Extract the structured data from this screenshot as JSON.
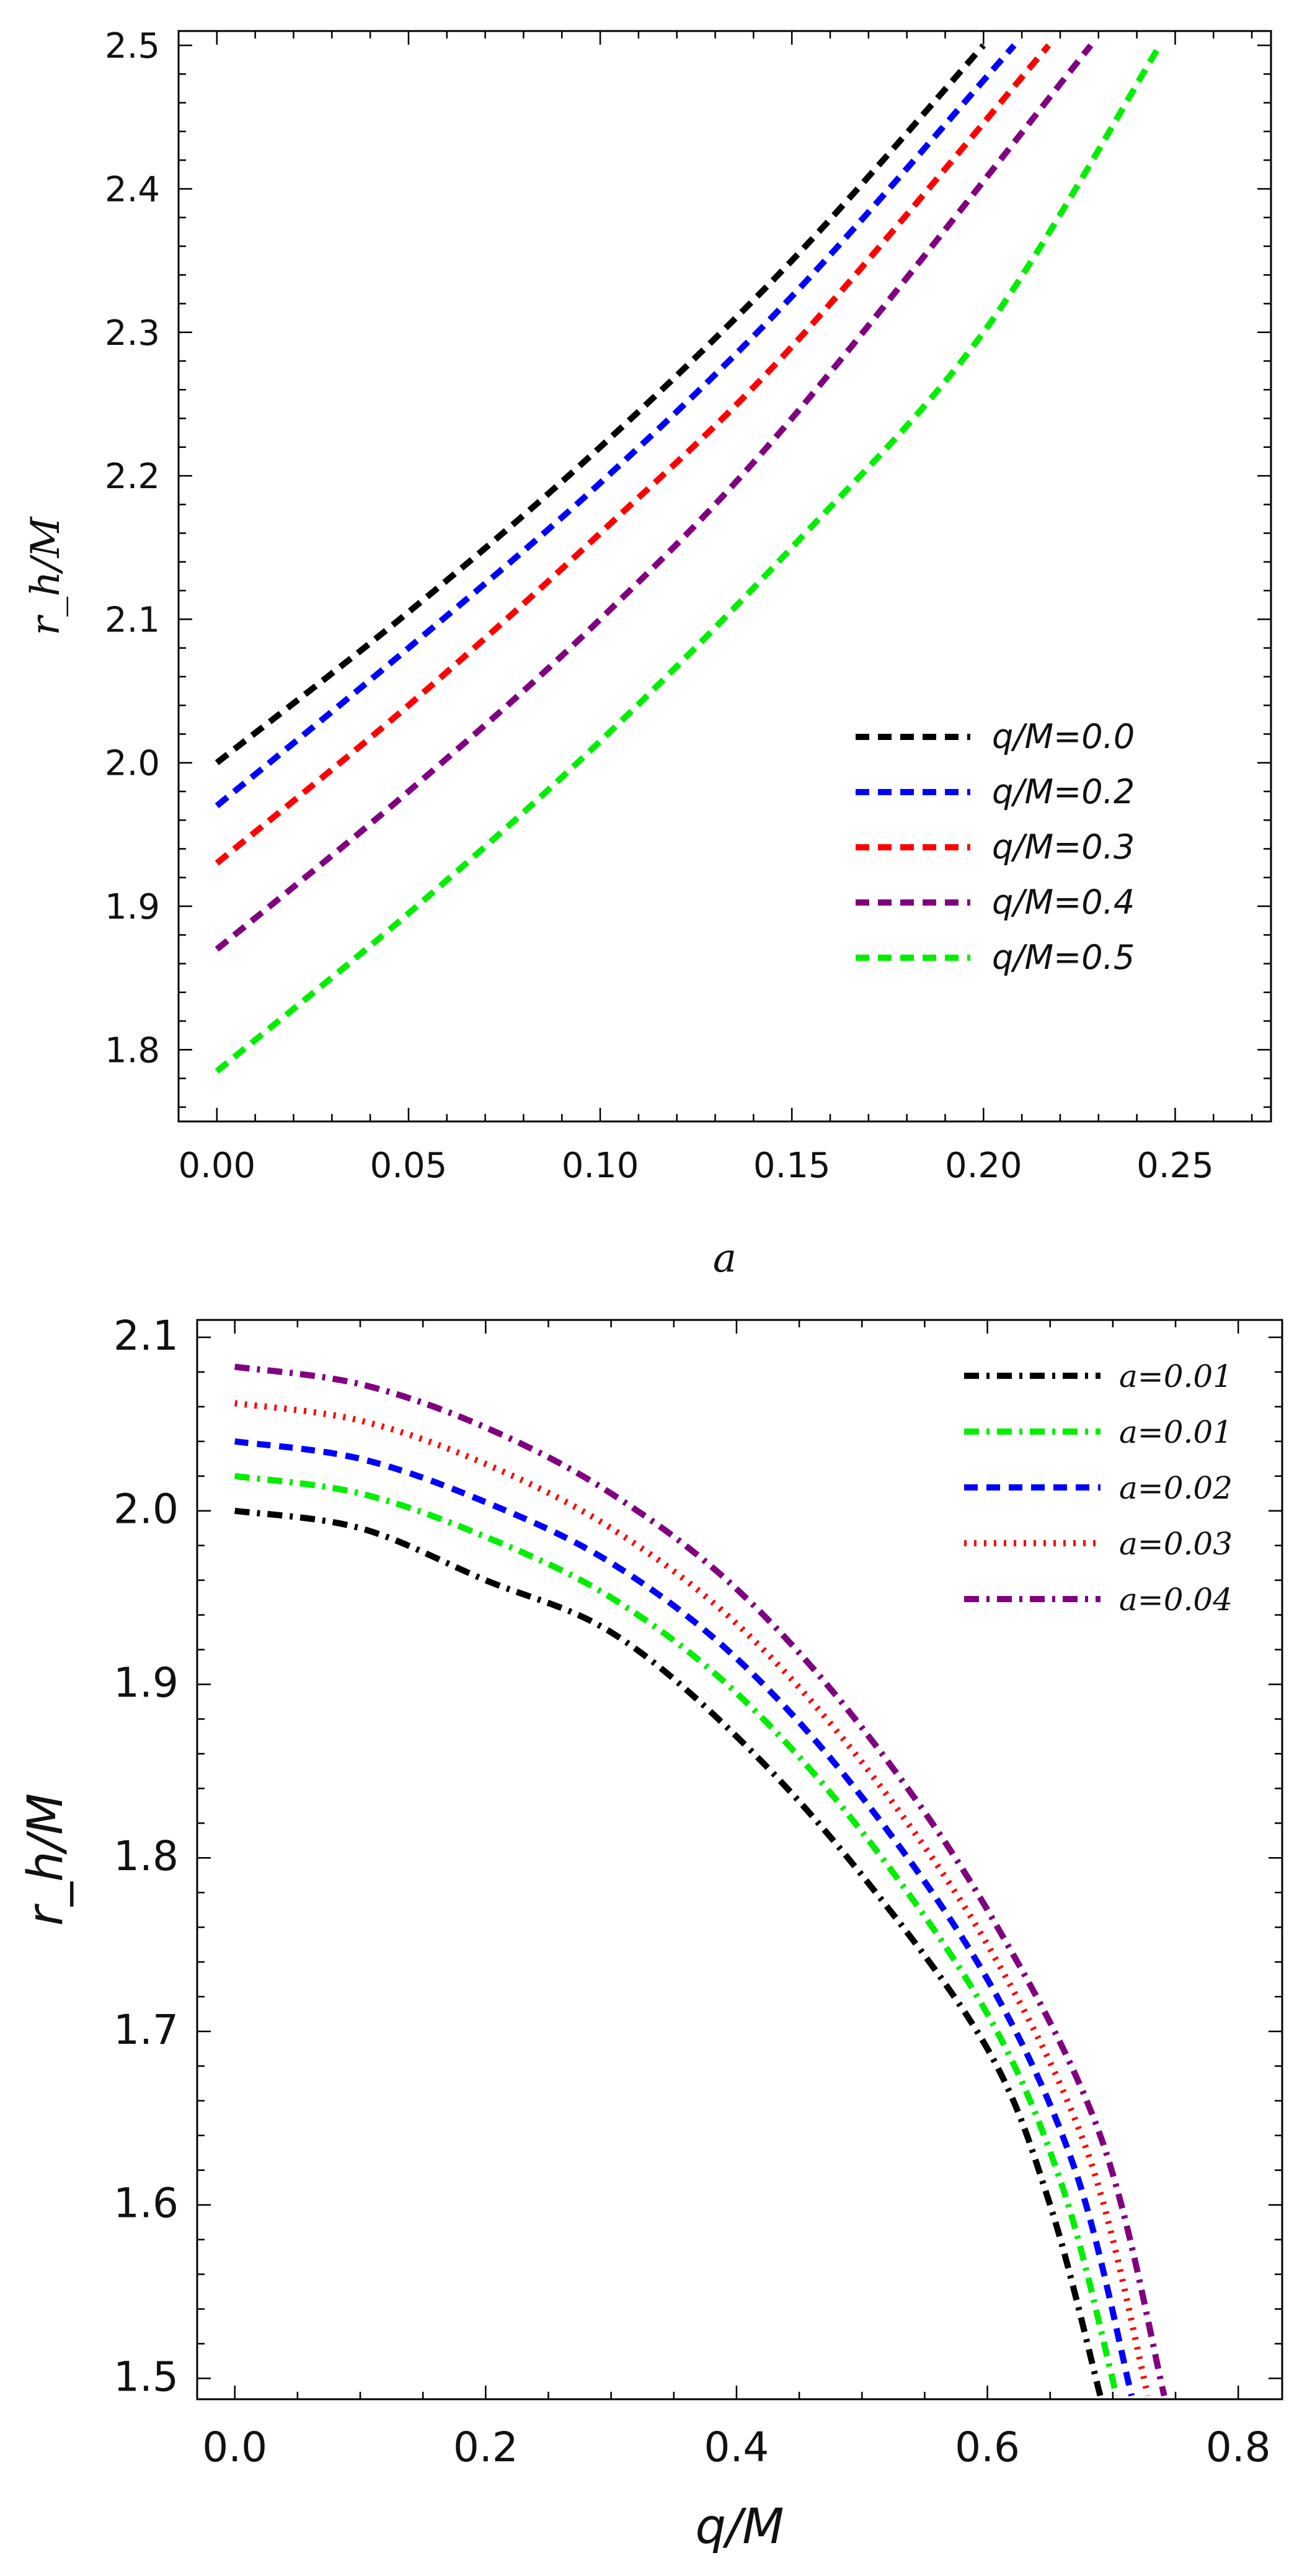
{
  "chart_data": [
    {
      "type": "line",
      "title": "",
      "xlabel": "a",
      "ylabel": "r_h/M",
      "xlim": [
        -0.01,
        0.275
      ],
      "ylim": [
        1.75,
        2.51
      ],
      "xticks": [
        "0.00",
        "0.05",
        "0.10",
        "0.15",
        "0.20",
        "0.25"
      ],
      "yticks": [
        "1.8",
        "1.9",
        "2.0",
        "2.1",
        "2.2",
        "2.3",
        "2.4",
        "2.5"
      ],
      "legend_position": "lower-right",
      "series": [
        {
          "name": "q/M=0.0",
          "color": "#000000",
          "style": "dashed",
          "x": [
            0.0,
            0.05,
            0.1,
            0.15,
            0.2
          ],
          "y": [
            2.0,
            2.105,
            2.22,
            2.35,
            2.5
          ]
        },
        {
          "name": "q/M=0.2",
          "color": "#0000ff",
          "style": "dashed",
          "x": [
            0.0,
            0.05,
            0.1,
            0.15,
            0.208
          ],
          "y": [
            1.97,
            2.08,
            2.195,
            2.325,
            2.5
          ]
        },
        {
          "name": "q/M=0.3",
          "color": "#ff0000",
          "style": "dashed",
          "x": [
            0.0,
            0.05,
            0.1,
            0.15,
            0.217
          ],
          "y": [
            1.93,
            2.04,
            2.16,
            2.29,
            2.5
          ]
        },
        {
          "name": "q/M=0.4",
          "color": "#800080",
          "style": "dashed",
          "x": [
            0.0,
            0.05,
            0.1,
            0.15,
            0.228
          ],
          "y": [
            1.87,
            1.98,
            2.1,
            2.24,
            2.5
          ]
        },
        {
          "name": "q/M=0.5",
          "color": "#00ee00",
          "style": "dashed",
          "x": [
            0.0,
            0.05,
            0.1,
            0.15,
            0.2,
            0.246
          ],
          "y": [
            1.785,
            1.895,
            2.015,
            2.15,
            2.3,
            2.5
          ]
        }
      ]
    },
    {
      "type": "line",
      "title": "",
      "xlabel": "q/M",
      "ylabel": "r_h/M",
      "xlim": [
        -0.03,
        0.835
      ],
      "ylim": [
        1.488,
        2.11
      ],
      "xticks": [
        "0.0",
        "0.2",
        "0.4",
        "0.6",
        "0.8"
      ],
      "yticks": [
        "1.5",
        "1.6",
        "1.7",
        "1.8",
        "1.9",
        "2.0",
        "2.1"
      ],
      "legend_position": "top-right",
      "series": [
        {
          "name": "a=0.01",
          "color": "#000000",
          "style": "dashdot",
          "x": [
            0.0,
            0.1,
            0.2,
            0.3,
            0.4,
            0.5,
            0.6,
            0.65,
            0.69
          ],
          "y": [
            2.0,
            1.99,
            1.96,
            1.93,
            1.87,
            1.79,
            1.69,
            1.6,
            1.49
          ]
        },
        {
          "name": "a=0.01",
          "color": "#00ee00",
          "style": "dashdot",
          "x": [
            0.0,
            0.1,
            0.2,
            0.3,
            0.4,
            0.5,
            0.6,
            0.66,
            0.703
          ],
          "y": [
            2.02,
            2.01,
            1.985,
            1.95,
            1.895,
            1.815,
            1.71,
            1.61,
            1.49
          ]
        },
        {
          "name": "a=0.02",
          "color": "#0000ff",
          "style": "dashed",
          "x": [
            0.0,
            0.1,
            0.2,
            0.3,
            0.4,
            0.5,
            0.6,
            0.67,
            0.715
          ],
          "y": [
            2.04,
            2.03,
            2.005,
            1.97,
            1.915,
            1.835,
            1.73,
            1.62,
            1.49
          ]
        },
        {
          "name": "a=0.03",
          "color": "#ff0000",
          "style": "dotted",
          "x": [
            0.0,
            0.1,
            0.2,
            0.3,
            0.4,
            0.5,
            0.6,
            0.68,
            0.728
          ],
          "y": [
            2.062,
            2.052,
            2.027,
            1.99,
            1.935,
            1.855,
            1.75,
            1.63,
            1.49
          ]
        },
        {
          "name": "a=0.04",
          "color": "#800080",
          "style": "dashdot",
          "x": [
            0.0,
            0.1,
            0.2,
            0.3,
            0.4,
            0.5,
            0.6,
            0.69,
            0.741
          ],
          "y": [
            2.083,
            2.073,
            2.048,
            2.01,
            1.955,
            1.875,
            1.77,
            1.64,
            1.49
          ]
        }
      ]
    }
  ]
}
